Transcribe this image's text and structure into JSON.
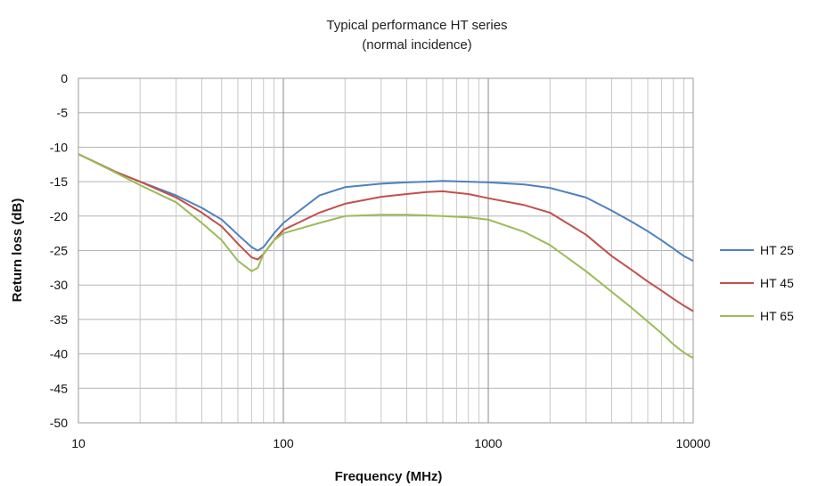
{
  "chart_data": {
    "type": "line",
    "title": "Typical performance HT series",
    "subtitle": "(normal incidence)",
    "xlabel": "Frequency (MHz)",
    "ylabel": "Return loss (dB)",
    "x_scale": "log",
    "xlim": [
      10,
      10000
    ],
    "ylim": [
      -50,
      0
    ],
    "x_ticks": [
      10,
      100,
      1000,
      10000
    ],
    "x_tick_labels": [
      "10",
      "100",
      "1000",
      "10000"
    ],
    "y_ticks": [
      0,
      -5,
      -10,
      -15,
      -20,
      -25,
      -30,
      -35,
      -40,
      -45,
      -50
    ],
    "y_tick_labels": [
      "0",
      "-5",
      "-10",
      "-15",
      "-20",
      "-25",
      "-30",
      "-35",
      "-40",
      "-45",
      "-50"
    ],
    "grid": true,
    "legend_position": "right",
    "series": [
      {
        "name": "HT 25",
        "color": "#4f81bd",
        "x": [
          10,
          15,
          20,
          30,
          40,
          50,
          60,
          70,
          75,
          80,
          90,
          100,
          150,
          200,
          300,
          400,
          500,
          600,
          800,
          1000,
          1500,
          2000,
          3000,
          4000,
          5000,
          6000,
          7000,
          8000,
          9000,
          10000
        ],
        "y": [
          -11,
          -13.5,
          -15,
          -17,
          -18.8,
          -20.5,
          -22.7,
          -24.5,
          -25,
          -24.5,
          -22.5,
          -21,
          -17,
          -15.8,
          -15.3,
          -15.1,
          -15,
          -14.9,
          -15,
          -15.1,
          -15.4,
          -15.9,
          -17.3,
          -19.2,
          -20.8,
          -22.2,
          -23.5,
          -24.7,
          -25.8,
          -26.5
        ]
      },
      {
        "name": "HT 45",
        "color": "#c0504d",
        "x": [
          10,
          15,
          20,
          30,
          40,
          50,
          60,
          70,
          75,
          80,
          90,
          100,
          150,
          200,
          300,
          400,
          500,
          600,
          800,
          1000,
          1500,
          2000,
          3000,
          4000,
          5000,
          6000,
          7000,
          8000,
          9000,
          10000
        ],
        "y": [
          -11,
          -13.5,
          -15,
          -17.3,
          -19.5,
          -21.5,
          -24,
          -26,
          -26.3,
          -25.5,
          -23.5,
          -22,
          -19.5,
          -18.2,
          -17.2,
          -16.8,
          -16.5,
          -16.4,
          -16.8,
          -17.4,
          -18.4,
          -19.5,
          -22.7,
          -25.8,
          -27.8,
          -29.5,
          -30.8,
          -32,
          -33,
          -33.8
        ]
      },
      {
        "name": "HT 65",
        "color": "#9bbb59",
        "x": [
          10,
          15,
          20,
          30,
          40,
          50,
          60,
          70,
          75,
          80,
          90,
          100,
          150,
          200,
          300,
          400,
          500,
          600,
          800,
          1000,
          1500,
          2000,
          3000,
          4000,
          5000,
          6000,
          7000,
          8000,
          9000,
          10000
        ],
        "y": [
          -11,
          -13.6,
          -15.5,
          -18,
          -21,
          -23.5,
          -26.5,
          -28,
          -27.5,
          -25.5,
          -23.5,
          -22.5,
          -21,
          -20,
          -19.8,
          -19.8,
          -19.9,
          -20,
          -20.2,
          -20.5,
          -22.3,
          -24.2,
          -28,
          -31,
          -33.3,
          -35.3,
          -37,
          -38.6,
          -39.8,
          -40.6
        ]
      }
    ]
  }
}
